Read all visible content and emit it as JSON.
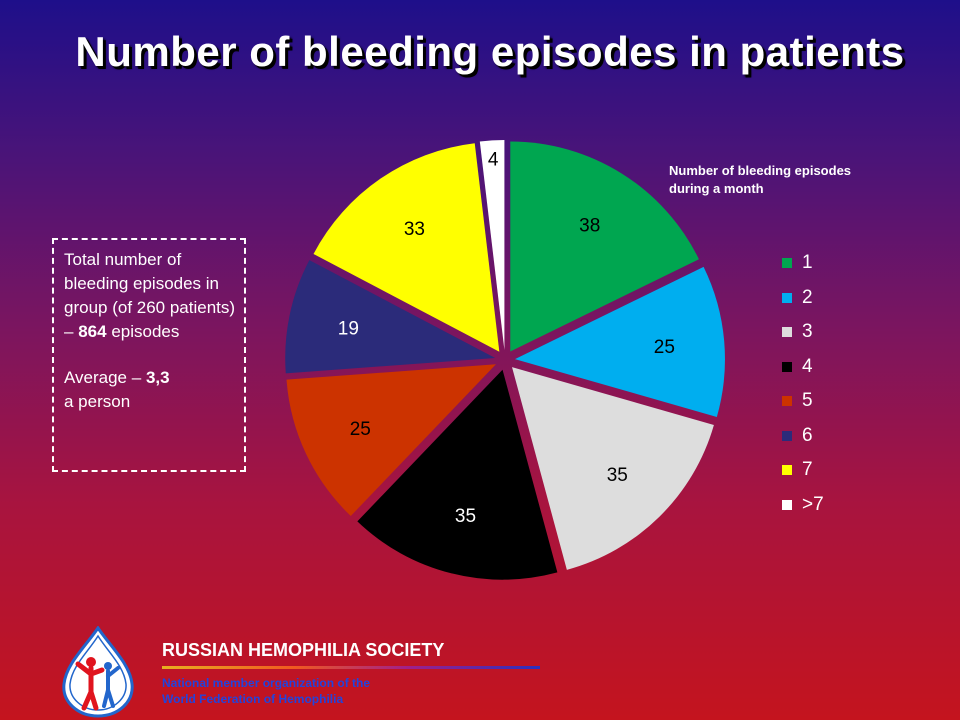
{
  "title": "Number of bleeding episodes in patients",
  "info_box": {
    "text_main": "Total number of bleeding episodes in group (of 260 patients) –",
    "total_value": "864",
    "text_episodes": "episodes",
    "avg_prefix": "Average –",
    "avg_value": "3,3",
    "avg_suffix": "a person"
  },
  "legend_title_line1": "Number of bleeding episodes",
  "legend_title_line2": "during a month",
  "chart_data": {
    "type": "pie",
    "title": "Number of bleeding episodes in patients",
    "legend_title": "Number of bleeding episodes during a month",
    "legend_position": "right",
    "slices": [
      {
        "label": "1",
        "value": 38,
        "color": "#00a650"
      },
      {
        "label": "2",
        "value": 25,
        "color": "#00aeef"
      },
      {
        "label": "3",
        "value": 35,
        "color": "#dddddd"
      },
      {
        "label": "4",
        "value": 35,
        "color": "#000000"
      },
      {
        "label": "5",
        "value": 25,
        "color": "#cc3300"
      },
      {
        "label": "6",
        "value": 19,
        "color": "#2b2b7a"
      },
      {
        "label": "7",
        "value": 33,
        "color": "#ffff00"
      },
      {
        "label": ">7",
        "value": 4,
        "color": "#ffffff"
      }
    ]
  },
  "footer": {
    "org_name": "RUSSIAN HEMOPHILIA SOCIETY",
    "sub_line1": "National member organization of the",
    "sub_line2": "World Federation of Hemophilia"
  },
  "colors": {
    "background_top": "#1e0f8a",
    "background_bottom": "#c4141e",
    "logo_blue": "#2266cc",
    "logo_red": "#e0141e"
  }
}
